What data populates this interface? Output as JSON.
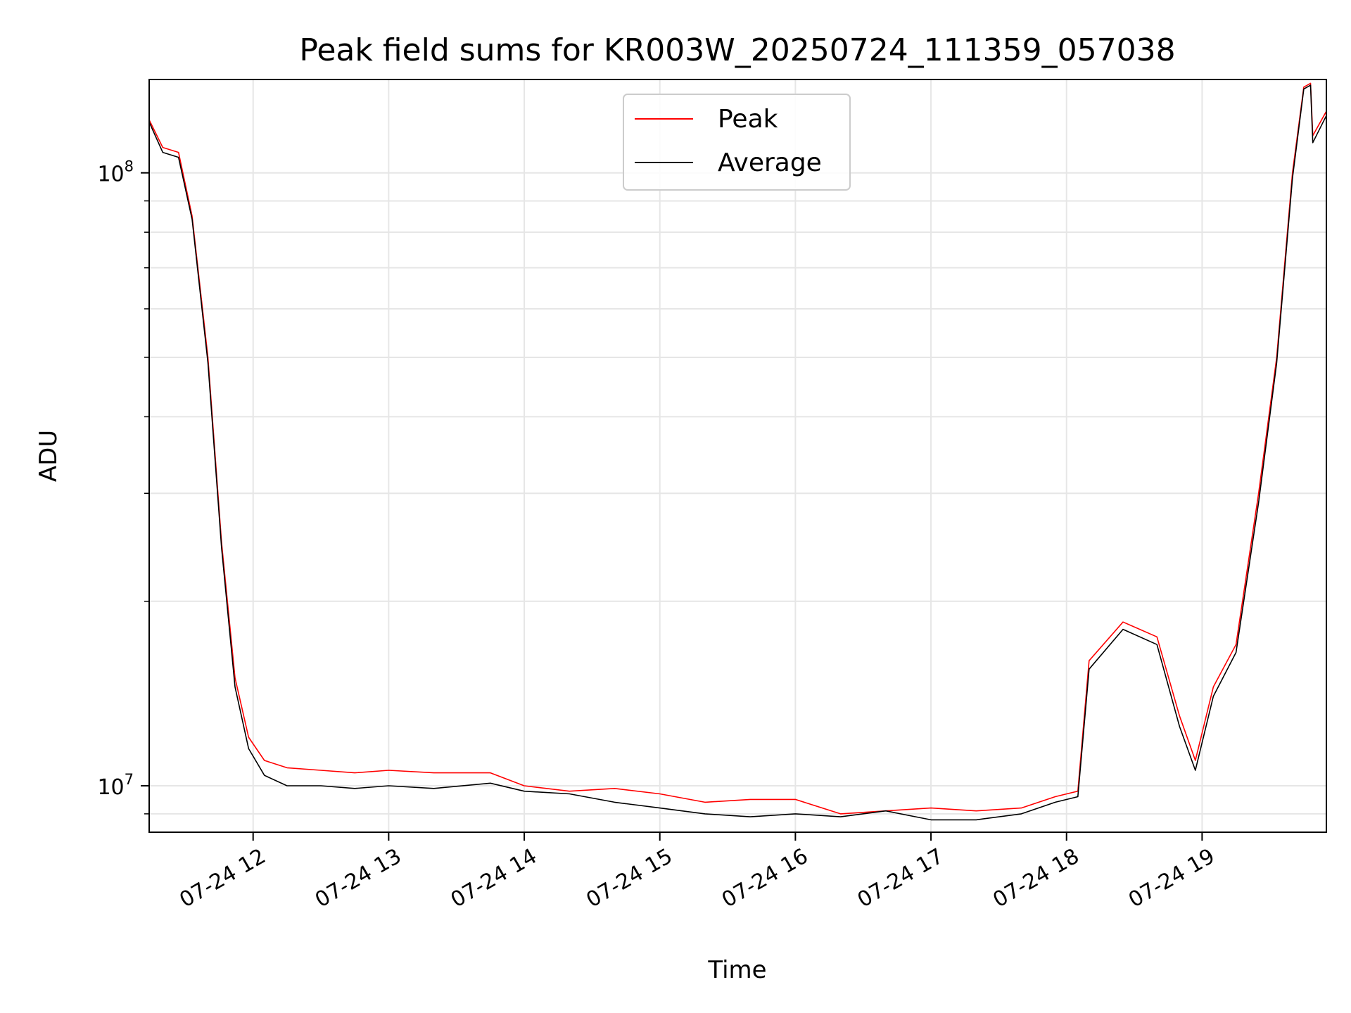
{
  "chart_data": {
    "type": "line",
    "title": "Peak field sums for KR003W_20250724_111359_057038",
    "xlabel": "Time",
    "ylabel": "ADU",
    "yscale": "log",
    "ylim": [
      8400000,
      142000000
    ],
    "xlim": [
      "2025-07-24 11:14",
      "2025-07-24 19:55"
    ],
    "grid": true,
    "legend_position": "top-center",
    "x_ticks": [
      {
        "t": "2025-07-24 12:00",
        "label": "07-24 12"
      },
      {
        "t": "2025-07-24 13:00",
        "label": "07-24 13"
      },
      {
        "t": "2025-07-24 14:00",
        "label": "07-24 14"
      },
      {
        "t": "2025-07-24 15:00",
        "label": "07-24 15"
      },
      {
        "t": "2025-07-24 16:00",
        "label": "07-24 16"
      },
      {
        "t": "2025-07-24 17:00",
        "label": "07-24 17"
      },
      {
        "t": "2025-07-24 18:00",
        "label": "07-24 18"
      },
      {
        "t": "2025-07-24 19:00",
        "label": "07-24 19"
      }
    ],
    "y_ticks": [
      {
        "v": 10000000,
        "base": "10",
        "exp": "7"
      },
      {
        "v": 100000000,
        "base": "10",
        "exp": "8"
      }
    ],
    "series": [
      {
        "name": "Peak",
        "color": "#ff0000",
        "points": [
          [
            "2025-07-24 11:14",
            122000000
          ],
          [
            "2025-07-24 11:20",
            110000000
          ],
          [
            "2025-07-24 11:27",
            108000000
          ],
          [
            "2025-07-24 11:33",
            85000000
          ],
          [
            "2025-07-24 11:40",
            50000000
          ],
          [
            "2025-07-24 11:46",
            25000000
          ],
          [
            "2025-07-24 11:52",
            15000000
          ],
          [
            "2025-07-24 11:58",
            12000000
          ],
          [
            "2025-07-24 12:05",
            11000000
          ],
          [
            "2025-07-24 12:15",
            10700000
          ],
          [
            "2025-07-24 12:30",
            10600000
          ],
          [
            "2025-07-24 12:45",
            10500000
          ],
          [
            "2025-07-24 13:00",
            10600000
          ],
          [
            "2025-07-24 13:20",
            10500000
          ],
          [
            "2025-07-24 13:45",
            10500000
          ],
          [
            "2025-07-24 14:00",
            10000000
          ],
          [
            "2025-07-24 14:20",
            9800000
          ],
          [
            "2025-07-24 14:40",
            9900000
          ],
          [
            "2025-07-24 15:00",
            9700000
          ],
          [
            "2025-07-24 15:20",
            9400000
          ],
          [
            "2025-07-24 15:40",
            9500000
          ],
          [
            "2025-07-24 16:00",
            9500000
          ],
          [
            "2025-07-24 16:20",
            9000000
          ],
          [
            "2025-07-24 16:40",
            9100000
          ],
          [
            "2025-07-24 17:00",
            9200000
          ],
          [
            "2025-07-24 17:20",
            9100000
          ],
          [
            "2025-07-24 17:40",
            9200000
          ],
          [
            "2025-07-24 17:55",
            9600000
          ],
          [
            "2025-07-24 18:05",
            9800000
          ],
          [
            "2025-07-24 18:10",
            16000000
          ],
          [
            "2025-07-24 18:25",
            18500000
          ],
          [
            "2025-07-24 18:40",
            17500000
          ],
          [
            "2025-07-24 18:50",
            13000000
          ],
          [
            "2025-07-24 18:57",
            11000000
          ],
          [
            "2025-07-24 19:05",
            14500000
          ],
          [
            "2025-07-24 19:15",
            17000000
          ],
          [
            "2025-07-24 19:25",
            30000000
          ],
          [
            "2025-07-24 19:33",
            50000000
          ],
          [
            "2025-07-24 19:40",
            100000000
          ],
          [
            "2025-07-24 19:45",
            138000000
          ],
          [
            "2025-07-24 19:48",
            140000000
          ],
          [
            "2025-07-24 19:49",
            115000000
          ],
          [
            "2025-07-24 19:55",
            126000000
          ]
        ]
      },
      {
        "name": "Average",
        "color": "#000000",
        "points": [
          [
            "2025-07-24 11:14",
            121000000
          ],
          [
            "2025-07-24 11:20",
            108000000
          ],
          [
            "2025-07-24 11:27",
            106000000
          ],
          [
            "2025-07-24 11:33",
            84000000
          ],
          [
            "2025-07-24 11:40",
            49000000
          ],
          [
            "2025-07-24 11:46",
            24500000
          ],
          [
            "2025-07-24 11:52",
            14500000
          ],
          [
            "2025-07-24 11:58",
            11500000
          ],
          [
            "2025-07-24 12:05",
            10400000
          ],
          [
            "2025-07-24 12:15",
            10000000
          ],
          [
            "2025-07-24 12:30",
            10000000
          ],
          [
            "2025-07-24 12:45",
            9900000
          ],
          [
            "2025-07-24 13:00",
            10000000
          ],
          [
            "2025-07-24 13:20",
            9900000
          ],
          [
            "2025-07-24 13:45",
            10100000
          ],
          [
            "2025-07-24 14:00",
            9800000
          ],
          [
            "2025-07-24 14:20",
            9700000
          ],
          [
            "2025-07-24 14:40",
            9400000
          ],
          [
            "2025-07-24 15:00",
            9200000
          ],
          [
            "2025-07-24 15:20",
            9000000
          ],
          [
            "2025-07-24 15:40",
            8900000
          ],
          [
            "2025-07-24 16:00",
            9000000
          ],
          [
            "2025-07-24 16:20",
            8900000
          ],
          [
            "2025-07-24 16:40",
            9100000
          ],
          [
            "2025-07-24 17:00",
            8800000
          ],
          [
            "2025-07-24 17:20",
            8800000
          ],
          [
            "2025-07-24 17:40",
            9000000
          ],
          [
            "2025-07-24 17:55",
            9400000
          ],
          [
            "2025-07-24 18:05",
            9600000
          ],
          [
            "2025-07-24 18:10",
            15500000
          ],
          [
            "2025-07-24 18:25",
            18000000
          ],
          [
            "2025-07-24 18:40",
            17000000
          ],
          [
            "2025-07-24 18:50",
            12500000
          ],
          [
            "2025-07-24 18:57",
            10600000
          ],
          [
            "2025-07-24 19:05",
            14000000
          ],
          [
            "2025-07-24 19:15",
            16500000
          ],
          [
            "2025-07-24 19:25",
            29000000
          ],
          [
            "2025-07-24 19:33",
            49000000
          ],
          [
            "2025-07-24 19:40",
            98000000
          ],
          [
            "2025-07-24 19:45",
            137000000
          ],
          [
            "2025-07-24 19:48",
            139000000
          ],
          [
            "2025-07-24 19:49",
            112000000
          ],
          [
            "2025-07-24 19:55",
            124000000
          ]
        ]
      }
    ]
  }
}
